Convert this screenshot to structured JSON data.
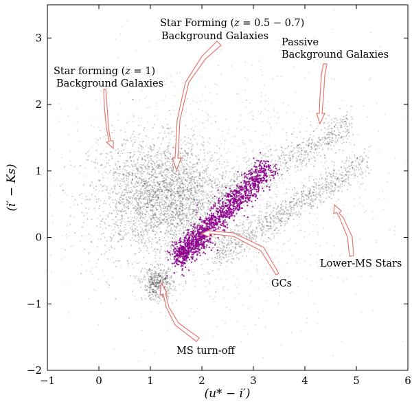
{
  "chart_data": {
    "type": "scatter",
    "title": "",
    "xlabel": "(u* − i′)",
    "ylabel": "(i′ − Ks)",
    "xlim": [
      -1,
      6
    ],
    "ylim": [
      -2,
      3.5
    ],
    "xticks": [
      "−1",
      "0",
      "1",
      "2",
      "3",
      "4",
      "5",
      "6"
    ],
    "xtick_values": [
      -1,
      0,
      1,
      2,
      3,
      4,
      5,
      6
    ],
    "yticks": [
      "−2",
      "−1",
      "0",
      "1",
      "2",
      "3"
    ],
    "ytick_values": [
      -2,
      -1,
      0,
      1,
      2,
      3
    ],
    "grid": false,
    "colors": {
      "background_points": "#000000",
      "gc_points": "#8b008b",
      "arrows": "#e8776f"
    },
    "series": [
      {
        "kind": "background",
        "color": "#000000",
        "clusters": [
          {
            "population": "star-forming-z1",
            "center": [
              0.9,
              0.6
            ],
            "spread": [
              0.55,
              0.45
            ]
          },
          {
            "population": "star-forming-z05",
            "center": [
              1.55,
              0.65
            ],
            "spread": [
              0.45,
              0.4
            ]
          },
          {
            "population": "passive",
            "trend": {
              "from": [
                2.3,
                0.6
              ],
              "to": [
                4.9,
                1.7
              ]
            },
            "width": 0.12
          },
          {
            "population": "lower-ms-stars",
            "trend": {
              "from": [
                2.2,
                -0.3
              ],
              "to": [
                5.2,
                1.15
              ]
            },
            "width": 0.12
          },
          {
            "population": "ms-turnoff",
            "center": [
              1.15,
              -0.7
            ],
            "spread": [
              0.15,
              0.12
            ]
          },
          {
            "population": "halo",
            "center": [
              2.2,
              0.7
            ],
            "spread": [
              1.6,
              1.0
            ]
          }
        ]
      },
      {
        "kind": "gcs",
        "color": "#8b008b",
        "trend": {
          "from": [
            1.55,
            -0.3
          ],
          "to": [
            3.3,
            1.05
          ]
        },
        "width": 0.1
      }
    ],
    "annotations": [
      {
        "lines": [
          "Star forming (z = 1)",
          "Background Galaxies"
        ],
        "xy": [
          0.3,
          1.3
        ]
      },
      {
        "lines": [
          "Star Forming (z = 0.5 − 0.7)",
          "Background Galaxies"
        ],
        "xy": [
          1.5,
          1.05
        ]
      },
      {
        "lines": [
          "Passive",
          "Background Galaxies"
        ],
        "xy": [
          4.3,
          1.75
        ]
      },
      {
        "lines": [
          "Lower-MS Stars"
        ],
        "xy": [
          4.6,
          0.5
        ]
      },
      {
        "lines": [
          "GCs"
        ],
        "xy": [
          2.0,
          0.05
        ]
      },
      {
        "lines": [
          "MS turn-off"
        ],
        "xy": [
          1.2,
          -0.75
        ]
      }
    ]
  },
  "labels": {
    "sf_z1_line1_pre": "Star forming (",
    "sf_z1_line1_math": "z",
    "sf_z1_line1_post": " = 1)",
    "sf_z1_line2": "Background Galaxies",
    "sf_z05_line1_pre": "Star Forming (",
    "sf_z05_line1_math": "z",
    "sf_z05_line1_post": " = 0.5 − 0.7)",
    "sf_z05_line2": "Background Galaxies",
    "passive_line1": "Passive",
    "passive_line2": "Background Galaxies",
    "lower_ms": "Lower-MS Stars",
    "gcs": "GCs",
    "ms_turnoff": "MS turn-off"
  }
}
